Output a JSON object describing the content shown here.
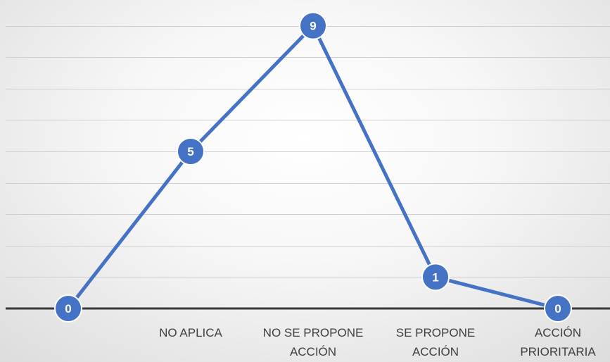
{
  "chart_data": {
    "type": "line",
    "title": "",
    "xlabel": "",
    "ylabel": "",
    "categories": [
      "",
      "NO APLICA",
      "NO SE PROPONE ACCIÓN",
      "SE PROPONE ACCIÓN",
      "ACCIÓN PRIORITARIA"
    ],
    "category_lines": [
      [
        ""
      ],
      [
        "NO APLICA"
      ],
      [
        "NO SE PROPONE",
        "ACCIÓN"
      ],
      [
        "SE PROPONE",
        "ACCIÓN"
      ],
      [
        "ACCIÓN",
        "PRIORITARIA"
      ]
    ],
    "series": [
      {
        "values": [
          0,
          5,
          9,
          1,
          0
        ],
        "color": "#4472C4"
      }
    ],
    "data_labels": [
      "0",
      "5",
      "9",
      "1",
      "0"
    ],
    "ylim": [
      0,
      9.0
    ],
    "grid": true,
    "colors": {
      "series": "#4472C4",
      "gridline": "#cfcfcf",
      "axis": "#3a3a3a",
      "tick_text": "#404040"
    }
  }
}
